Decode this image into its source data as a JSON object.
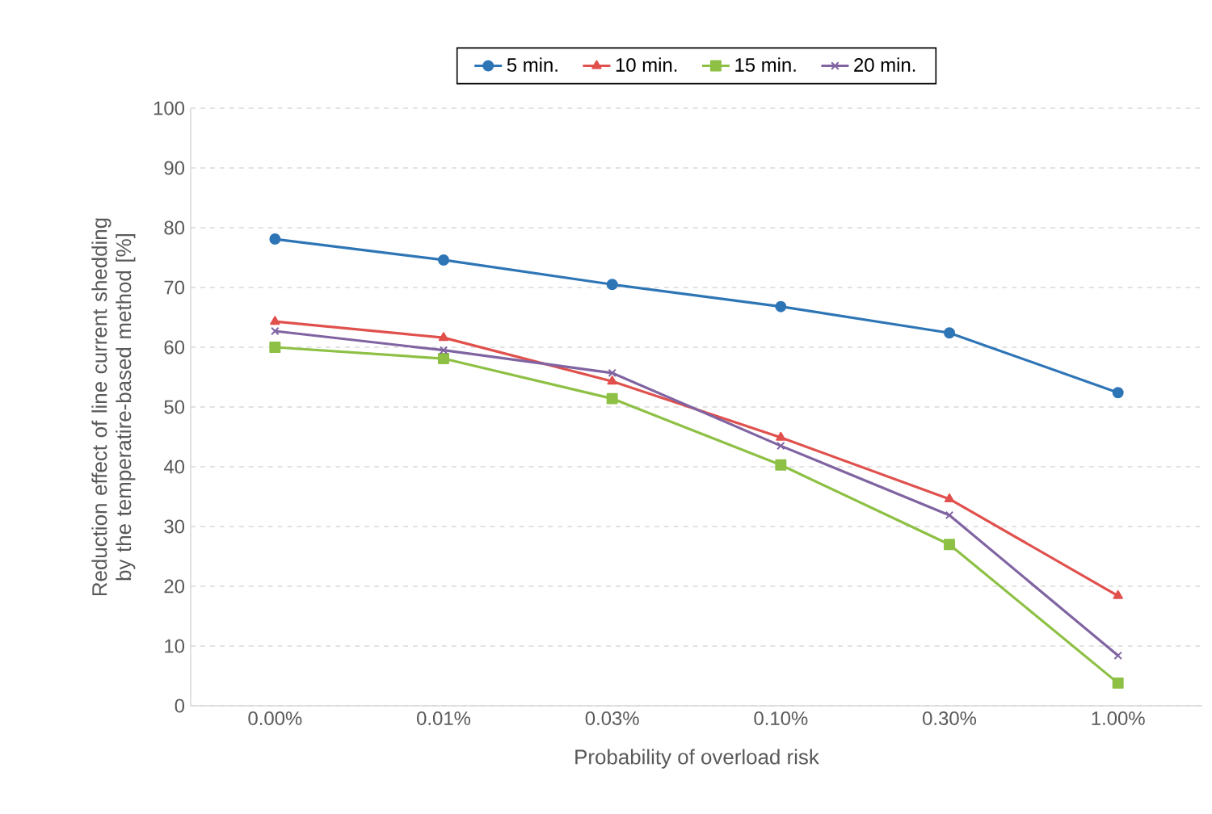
{
  "chart_data": {
    "type": "line",
    "xlabel": "Probability of overload risk",
    "ylabel": "Reduction effect of line current shedding by the temperatire-based method [%]",
    "categories": [
      "0.00%",
      "0.01%",
      "0.03%",
      "0.10%",
      "0.30%",
      "1.00%"
    ],
    "series": [
      {
        "name": "5 min.",
        "color": "#2e75b6",
        "marker": "circle",
        "values": [
          78.1,
          74.6,
          70.5,
          66.8,
          62.4,
          52.4
        ]
      },
      {
        "name": "10 min.",
        "color": "#e0504c",
        "marker": "triangle",
        "values": [
          64.3,
          61.6,
          54.3,
          44.9,
          34.6,
          18.4
        ]
      },
      {
        "name": "15 min.",
        "color": "#8dc044",
        "marker": "square",
        "values": [
          60.0,
          58.1,
          51.4,
          40.3,
          27.0,
          3.8
        ]
      },
      {
        "name": "20 min.",
        "color": "#8064a2",
        "marker": "cross",
        "values": [
          62.7,
          59.5,
          55.7,
          43.5,
          31.9,
          8.4
        ]
      }
    ],
    "ylim": [
      0,
      100
    ],
    "yticks": [
      0,
      10,
      20,
      30,
      40,
      50,
      60,
      70,
      80,
      90,
      100
    ],
    "grid": "y",
    "legend": "top",
    "line_style": "solid"
  }
}
